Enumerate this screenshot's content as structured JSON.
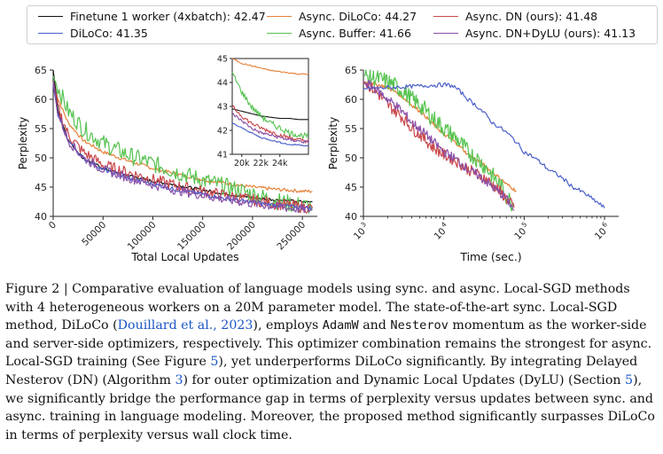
{
  "legend": [
    {
      "label": "Finetune 1 worker (4xbatch): 42.47",
      "color": "#111111"
    },
    {
      "label": "DiLoCo: 41.35",
      "color": "#4a5fc9"
    },
    {
      "label": "Async. DiLoCo: 44.27",
      "color": "#e5823a"
    },
    {
      "label": "Async. Buffer: 41.66",
      "color": "#56c24f"
    },
    {
      "label": "Async. DN (ours): 41.48",
      "color": "#c9464a"
    },
    {
      "label": "Async. DN+DyLU (ours): 41.13",
      "color": "#8a4fa8"
    }
  ],
  "chart_data": [
    {
      "type": "line",
      "xlabel": "Total Local Updates",
      "ylabel": "Perplexity",
      "xlim": [
        0,
        265000
      ],
      "ylim": [
        40,
        65
      ],
      "xticks": [
        "0",
        "50000",
        "100000",
        "150000",
        "200000",
        "250000"
      ],
      "yticks": [
        "40",
        "45",
        "50",
        "55",
        "60",
        "65"
      ],
      "x": [
        0,
        5000,
        15000,
        30000,
        50000,
        75000,
        100000,
        125000,
        150000,
        175000,
        200000,
        225000,
        250000,
        260000
      ],
      "series": [
        {
          "name": "Finetune 1 worker (4xbatch): 42.47",
          "values": [
            65,
            58,
            53,
            50,
            48.2,
            47,
            46,
            45.3,
            44.5,
            43.8,
            43.2,
            42.8,
            42.5,
            42.47
          ]
        },
        {
          "name": "DiLoCo: 41.35",
          "values": [
            62.5,
            57,
            53,
            50,
            48,
            46.5,
            45.5,
            44.5,
            43.8,
            43,
            42.4,
            41.9,
            41.5,
            41.35
          ]
        },
        {
          "name": "Async. DiLoCo: 44.27",
          "values": [
            63,
            60,
            56,
            53,
            51,
            49.5,
            48.2,
            47.2,
            46.3,
            45.6,
            45,
            44.6,
            44.3,
            44.27
          ]
        },
        {
          "name": "Async. Buffer: 41.66",
          "values": [
            64,
            62,
            58,
            55,
            52.5,
            50.5,
            49,
            47.5,
            46.2,
            45,
            43.8,
            42.6,
            41.8,
            41.66
          ]
        },
        {
          "name": "Async. DN (ours): 41.48",
          "values": [
            63,
            58.5,
            54,
            51,
            48.8,
            47.5,
            46.3,
            45.2,
            44.3,
            43.5,
            42.8,
            42.1,
            41.6,
            41.48
          ]
        },
        {
          "name": "Async. DN+DyLU (ours): 41.13",
          "values": [
            63,
            57.5,
            53,
            50,
            48,
            46.6,
            45.4,
            44.4,
            43.6,
            42.8,
            42.2,
            41.6,
            41.2,
            41.13
          ]
        }
      ],
      "inset": {
        "xlim": [
          19000,
          27000
        ],
        "ylim": [
          41,
          45
        ],
        "xticks": [
          "20k",
          "22k",
          "24k"
        ],
        "yticks": [
          "41",
          "42",
          "43",
          "44",
          "45"
        ],
        "x": [
          19000,
          20000,
          21000,
          22000,
          23000,
          24000,
          25000,
          26000,
          27000
        ],
        "series": [
          {
            "name": "Finetune 1 worker (4xbatch): 42.47",
            "values": [
              42.9,
              42.8,
              42.7,
              42.6,
              42.55,
              42.5,
              42.5,
              42.45,
              42.45
            ]
          },
          {
            "name": "DiLoCo: 41.35",
            "values": [
              42.3,
              42.1,
              41.9,
              41.7,
              41.6,
              41.5,
              41.4,
              41.4,
              41.35
            ]
          },
          {
            "name": "Async. DiLoCo: 44.27",
            "values": [
              45,
              44.8,
              44.7,
              44.6,
              44.5,
              44.45,
              44.4,
              44.35,
              44.35
            ]
          },
          {
            "name": "Async. Buffer: 41.66",
            "values": [
              44.4,
              43.6,
              43,
              42.6,
              42.3,
              42.1,
              41.9,
              41.8,
              41.75
            ]
          },
          {
            "name": "Async. DN (ours): 41.48",
            "values": [
              43,
              42.6,
              42.3,
              42.1,
              41.95,
              41.8,
              41.7,
              41.6,
              41.55
            ]
          },
          {
            "name": "Async. DN+DyLU (ours): 41.13",
            "values": [
              42.7,
              42.4,
              42.1,
              41.9,
              41.8,
              41.7,
              41.6,
              41.55,
              41.5
            ]
          }
        ]
      }
    },
    {
      "type": "line",
      "xlabel": "Time (sec.)",
      "ylabel": "Perplexity",
      "xscale": "log",
      "xlim": [
        1000,
        1500000
      ],
      "ylim": [
        40,
        65
      ],
      "xticks": [
        "10^3",
        "10^4",
        "10^5",
        "10^6"
      ],
      "yticks": [
        "40",
        "45",
        "50",
        "55",
        "60",
        "65"
      ],
      "series": [
        {
          "name": "DiLoCo: 41.35",
          "x": [
            1000,
            2000,
            4000,
            7000,
            10000,
            13000,
            20000,
            40000,
            100000,
            200000,
            400000,
            700000,
            1000000
          ],
          "values": [
            61.8,
            62,
            62.2,
            62.4,
            62.5,
            62.3,
            60,
            56,
            51,
            48,
            45,
            43,
            41.4
          ]
        },
        {
          "name": "Async. DiLoCo: 44.27",
          "x": [
            1000,
            2000,
            4000,
            7000,
            10000,
            20000,
            40000,
            60000,
            80000
          ],
          "values": [
            63,
            62,
            59,
            56,
            54,
            50.5,
            47.5,
            45.5,
            44.3
          ]
        },
        {
          "name": "Async. Buffer: 41.66",
          "x": [
            1000,
            2000,
            4000,
            7000,
            10000,
            20000,
            40000,
            60000,
            75000
          ],
          "values": [
            64,
            63,
            60,
            57,
            55,
            51,
            47,
            43.5,
            41.7
          ]
        },
        {
          "name": "Async. DN (ours): 41.48",
          "x": [
            1000,
            2000,
            4000,
            7000,
            10000,
            20000,
            40000,
            60000,
            75000
          ],
          "values": [
            63,
            59,
            55,
            52,
            50.5,
            48,
            45.5,
            43,
            41.5
          ]
        },
        {
          "name": "Async. DN+DyLU (ours): 41.13",
          "x": [
            1000,
            2000,
            4000,
            7000,
            10000,
            20000,
            40000,
            60000,
            75000
          ],
          "values": [
            63,
            60,
            56,
            53,
            51,
            48,
            45,
            43,
            41.1
          ]
        }
      ]
    }
  ],
  "caption": {
    "p1": "Figure 2 | Comparative evaluation of language models using sync. and async. Local-SGD methods with 4 heterogeneous workers on a 20M parameter model. The state-of-the-art sync. Local-SGD method, DiLoCo (",
    "ref1": "Douillard et al., 2023",
    "p2": "), employs ",
    "code1": "AdamW",
    "p3": " and ",
    "code2": "Nesterov",
    "p4": " momentum as the worker-side and server-side optimizers, respectively. This optimizer combination remains the strongest for async. Local-SGD training (See Figure ",
    "ref2": "5",
    "p5": "), yet underperforms DiLoCo significantly. By integrating Delayed Nesterov (DN) (Algorithm ",
    "ref3": "3",
    "p6": ") for outer optimization and Dynamic Local Updates (DyLU) (Section ",
    "ref4": "5",
    "p7": "), we significantly bridge the performance gap in terms of perplexity versus updates between sync. and async. training in language modeling. Moreover, the proposed method significantly surpasses DiLoCo in terms of perplexity versus wall clock time."
  }
}
